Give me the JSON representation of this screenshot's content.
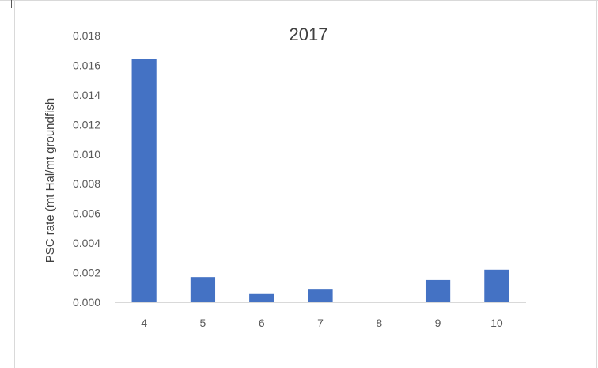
{
  "chart_data": {
    "type": "bar",
    "title": "2017",
    "xlabel": "",
    "ylabel": "PSC rate (mt Hal/mt groundfish",
    "categories": [
      "4",
      "5",
      "6",
      "7",
      "8",
      "9",
      "10"
    ],
    "values": [
      0.0164,
      0.0017,
      0.0006,
      0.0009,
      0.0,
      0.0015,
      0.0022
    ],
    "yticks": [
      "0.000",
      "0.002",
      "0.004",
      "0.006",
      "0.008",
      "0.010",
      "0.012",
      "0.014",
      "0.016",
      "0.018"
    ],
    "ylim": [
      0,
      0.018
    ],
    "grid": false,
    "legend": "none",
    "bar_color": "#4472c4",
    "axis_color": "#d9d9d9"
  }
}
